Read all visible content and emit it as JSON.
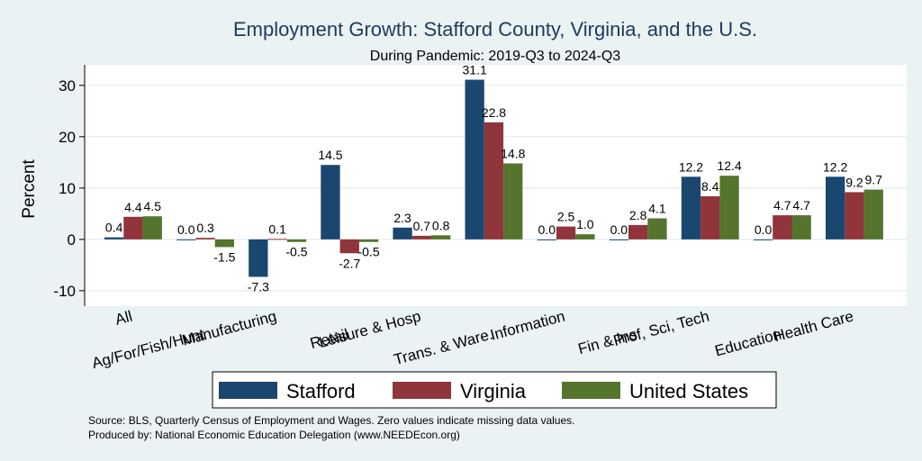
{
  "chart_data": {
    "type": "bar",
    "title": "Employment Growth: Stafford County, Virginia, and the U.S.",
    "subtitle": "During Pandemic: 2019-Q3 to 2024-Q3",
    "ylabel": "Percent",
    "xlabel": "",
    "ylim": [
      -13,
      34
    ],
    "yticks": [
      -10,
      0,
      10,
      20,
      30
    ],
    "grid": true,
    "legend_position": "bottom",
    "categories": [
      "All",
      "Ag/For/Fish/Hunt",
      "Manufacturing",
      "Retail",
      "Leisure & Hosp",
      "Trans. & Ware.",
      "Information",
      "Fin & Ins",
      "Prof, Sci, Tech",
      "Education",
      "Health Care"
    ],
    "series": [
      {
        "name": "Stafford",
        "color": "#1a476f",
        "values": [
          0.4,
          0.0,
          -7.3,
          14.5,
          2.3,
          31.1,
          0.0,
          0.0,
          12.2,
          0.0,
          12.2
        ],
        "labels": [
          "0.4",
          "0.0",
          "-7.3",
          "14.5",
          "2.3",
          "31.1",
          "0.0",
          "0.0",
          "12.2",
          "0.0",
          "12.2"
        ]
      },
      {
        "name": "Virginia",
        "color": "#90353b",
        "values": [
          4.4,
          0.3,
          0.1,
          -2.7,
          0.7,
          22.8,
          2.5,
          2.8,
          8.4,
          4.7,
          9.2
        ],
        "labels": [
          "4.4",
          "0.3",
          "0.1",
          "-2.7",
          "0.7",
          "22.8",
          "2.5",
          "2.8",
          "8.4",
          "4.7",
          "9.2"
        ]
      },
      {
        "name": "United States",
        "color": "#55752f",
        "values": [
          4.5,
          -1.5,
          -0.5,
          -0.5,
          0.8,
          14.8,
          1.0,
          4.1,
          12.4,
          4.7,
          9.7
        ],
        "labels": [
          "4.5",
          "-1.5",
          "-0.5",
          "-0.5",
          "0.8",
          "14.8",
          "1.0",
          "4.1",
          "12.4",
          "4.7",
          "9.7"
        ]
      }
    ]
  },
  "notes": {
    "source": "Source: BLS, Quarterly Census of Employment and Wages. Zero values indicate missing data values.",
    "produced": "Produced by: National Economic Education Delegation (www.NEEDEcon.org)"
  }
}
